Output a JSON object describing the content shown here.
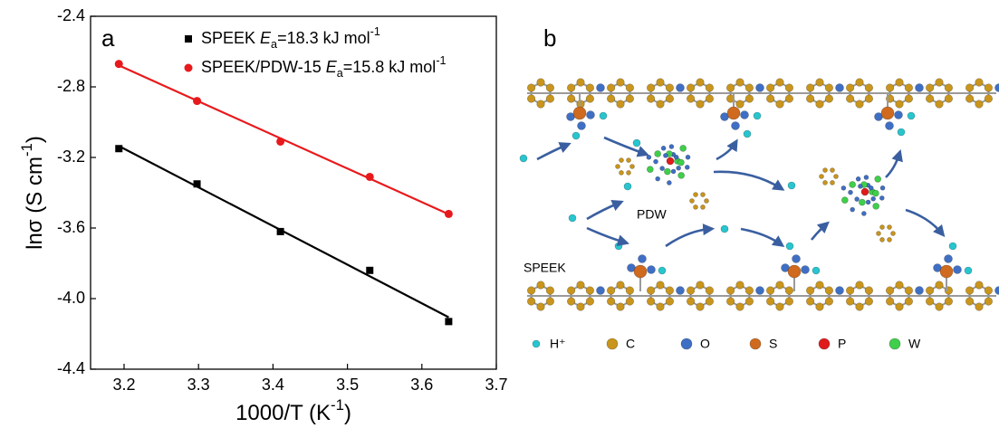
{
  "chart_data": {
    "type": "scatter",
    "panel_label": "a",
    "x_label_parts": [
      "1000/T (K",
      "-1",
      ")"
    ],
    "y_label_parts": [
      "lnσ (S cm",
      "-1",
      ")"
    ],
    "xlim": [
      3.155,
      3.7
    ],
    "ylim": [
      -4.4,
      -2.4
    ],
    "xticks": [
      3.2,
      3.3,
      3.4,
      3.5,
      3.6,
      3.7
    ],
    "yticks": [
      -2.4,
      -2.8,
      -3.2,
      -3.6,
      {
        "value": -4,
        "label": "-4.0"
      },
      -4.4
    ],
    "fit_lines": true,
    "series": [
      {
        "name": "SPEEK",
        "ea_label": [
          "E",
          "a",
          "=18.3 kJ mol",
          "-1"
        ],
        "color": "#000000",
        "marker": "square",
        "x": [
          3.193,
          3.298,
          3.41,
          3.53,
          3.636
        ],
        "values": [
          -3.15,
          -3.35,
          -3.62,
          -3.84,
          -4.13
        ]
      },
      {
        "name": "SPEEK/PDW-15",
        "ea_label": [
          "E",
          "a",
          "=15.8 kJ mol",
          "-1"
        ],
        "color": "#e8191c",
        "marker": "circle",
        "x": [
          3.193,
          3.298,
          3.41,
          3.53,
          3.636
        ],
        "values": [
          -2.67,
          -2.88,
          -3.11,
          -3.31,
          -3.52
        ]
      }
    ]
  },
  "diagram": {
    "panel_label": "b",
    "pdw_label": "PDW",
    "speek_label": "SPEEK",
    "legend": [
      "H⁺",
      "C",
      "O",
      "S",
      "P",
      "W"
    ]
  }
}
